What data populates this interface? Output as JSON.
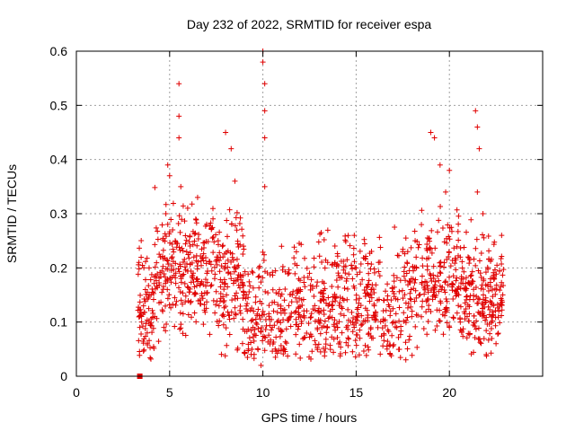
{
  "chart_data": {
    "type": "scatter",
    "title": "Day 232 of 2022, SRMTID for receiver espa",
    "xlabel": "GPS time / hours",
    "ylabel": "SRMTID / TECUs",
    "xlim": [
      0,
      25
    ],
    "ylim": [
      0,
      0.6
    ],
    "x_ticks": [
      0,
      5,
      10,
      15,
      20
    ],
    "x_tick_labels": [
      "0",
      "5",
      "10",
      "15",
      "20"
    ],
    "y_ticks": [
      0,
      0.1,
      0.2,
      0.3,
      0.4,
      0.5,
      0.6
    ],
    "y_tick_labels": [
      "0",
      "0.1",
      "0.2",
      "0.3",
      "0.4",
      "0.5",
      "0.6"
    ],
    "grid": true,
    "marker": "+",
    "marker_color": "#e00000",
    "extra_marker": {
      "shape": "square",
      "x": 3.4,
      "y": 0.0
    },
    "x_range": [
      3.3,
      22.9
    ],
    "sample_points": [
      [
        3.5,
        0.1
      ],
      [
        3.6,
        0.13
      ],
      [
        3.7,
        0.16
      ],
      [
        3.8,
        0.08
      ],
      [
        3.9,
        0.2
      ],
      [
        4.2,
        0.11
      ],
      [
        4.5,
        0.22
      ],
      [
        4.8,
        0.3
      ],
      [
        4.9,
        0.39
      ],
      [
        5.0,
        0.37
      ],
      [
        5.3,
        0.25
      ],
      [
        5.5,
        0.54
      ],
      [
        5.5,
        0.48
      ],
      [
        5.5,
        0.44
      ],
      [
        5.6,
        0.35
      ],
      [
        6.3,
        0.22
      ],
      [
        6.5,
        0.33
      ],
      [
        7.0,
        0.19
      ],
      [
        7.6,
        0.25
      ],
      [
        8.0,
        0.45
      ],
      [
        8.3,
        0.42
      ],
      [
        8.5,
        0.36
      ],
      [
        9.0,
        0.15
      ],
      [
        9.5,
        0.12
      ],
      [
        9.9,
        0.02
      ],
      [
        10.0,
        0.6
      ],
      [
        10.0,
        0.58
      ],
      [
        10.1,
        0.54
      ],
      [
        10.1,
        0.49
      ],
      [
        10.1,
        0.44
      ],
      [
        10.1,
        0.35
      ],
      [
        10.5,
        0.09
      ],
      [
        11.0,
        0.24
      ],
      [
        11.5,
        0.11
      ],
      [
        12.0,
        0.16
      ],
      [
        12.5,
        0.19
      ],
      [
        13.0,
        0.1
      ],
      [
        13.5,
        0.13
      ],
      [
        14.0,
        0.09
      ],
      [
        14.5,
        0.18
      ],
      [
        14.9,
        0.26
      ],
      [
        15.0,
        0.2
      ],
      [
        15.2,
        0.07
      ],
      [
        15.8,
        0.16
      ],
      [
        16.2,
        0.21
      ],
      [
        16.5,
        0.14
      ],
      [
        17.0,
        0.1
      ],
      [
        17.5,
        0.23
      ],
      [
        18.0,
        0.12
      ],
      [
        18.5,
        0.28
      ],
      [
        19.0,
        0.45
      ],
      [
        19.2,
        0.44
      ],
      [
        19.5,
        0.39
      ],
      [
        19.8,
        0.34
      ],
      [
        20.0,
        0.38
      ],
      [
        20.5,
        0.15
      ],
      [
        21.0,
        0.22
      ],
      [
        21.4,
        0.49
      ],
      [
        21.5,
        0.46
      ],
      [
        21.6,
        0.42
      ],
      [
        21.5,
        0.34
      ],
      [
        21.8,
        0.3
      ],
      [
        22.2,
        0.18
      ],
      [
        22.5,
        0.06
      ],
      [
        22.8,
        0.26
      ]
    ]
  }
}
